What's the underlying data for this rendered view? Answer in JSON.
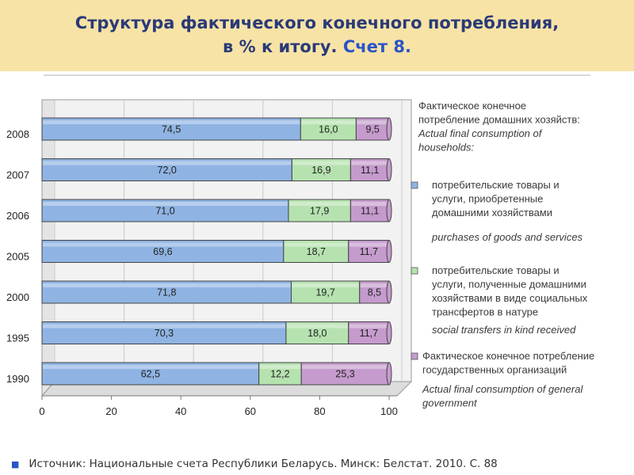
{
  "title": {
    "line1": "Структура фактического конечного потребления,",
    "line2_main": "в % к итогу.",
    "line2_accent": "Счет 8."
  },
  "colors": {
    "household_goods": "#8fb4e3",
    "social_transfers": "#b6e2b0",
    "government": "#c59bcd",
    "header_bg": "#f8e3a6",
    "title": "#2a3a78"
  },
  "chart_data": {
    "type": "bar",
    "orientation": "horizontal",
    "stacked": true,
    "categories": [
      "2008",
      "2007",
      "2006",
      "2005",
      "2000",
      "1995",
      "1990"
    ],
    "series": [
      {
        "name": "потребительские товары и услуги, приобретенные домашними хозяйствами",
        "color": "#8fb4e3",
        "values": [
          74.5,
          72.0,
          71.0,
          69.6,
          71.8,
          70.3,
          62.5
        ],
        "labels": [
          "74,5",
          "72,0",
          "71,0",
          "69,6",
          "71,8",
          "70,3",
          "62,5"
        ]
      },
      {
        "name": "потребительские товары и услуги, полученные домашними хозяйствами в виде социальных трансфертов в натуре",
        "color": "#b6e2b0",
        "values": [
          16.0,
          16.9,
          17.9,
          18.7,
          19.7,
          18.0,
          12.2
        ],
        "labels": [
          "16,0",
          "16,9",
          "17,9",
          "18,7",
          "19,7",
          "18,0",
          "12,2"
        ]
      },
      {
        "name": "Фактическое конечное потребление государственных организаций",
        "color": "#c59bcd",
        "values": [
          9.5,
          11.1,
          11.1,
          11.7,
          8.5,
          11.7,
          25.3
        ],
        "labels": [
          "9,5",
          "11,1",
          "11,1",
          "11,7",
          "8,5",
          "11,7",
          "25,3"
        ]
      }
    ],
    "xlim": [
      0,
      100
    ],
    "x_ticks": [
      "0",
      "20",
      "40",
      "60",
      "80",
      "100"
    ],
    "legend_placement": "right",
    "legend": {
      "heading_ru": [
        "Фактическое конечное",
        "потребление домашних хозяйств:"
      ],
      "heading_en": [
        "Actual final consumption of",
        "households:"
      ],
      "items": [
        {
          "ru": [
            "потребительские товары и",
            "услуги,  приобретенные",
            "домашними хозяйствами"
          ],
          "en": [
            "purchases of goods and services"
          ]
        },
        {
          "ru": [
            "потребительские товары и",
            "услуги, полученные домашними",
            "хозяйствами в виде социальных",
            "трансфертов в натуре"
          ],
          "en": [
            "social transfers in kind received"
          ]
        },
        {
          "ru": [
            "Фактическое конечное потребление",
            "государственных организаций"
          ],
          "en": [
            "Actual final consumption of general",
            "government"
          ]
        }
      ]
    }
  },
  "footer": {
    "text": "Источник: Национальные счета Республики Беларусь. Минск: Белстат. 2010. С. 88"
  }
}
